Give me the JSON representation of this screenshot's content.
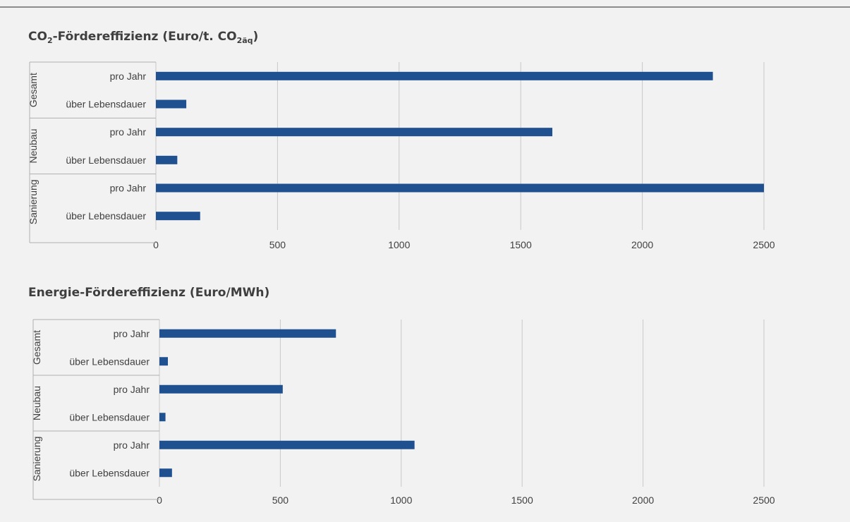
{
  "chart_data": [
    {
      "type": "bar",
      "title_main": "CO",
      "title_sub1": "2",
      "title_mid": "-Fördereffizienz (Euro/t. CO",
      "title_sub2": "2äq",
      "title_end": ")",
      "groups": [
        "Gesamt",
        "Neubau",
        "Sanierung"
      ],
      "categories": [
        "pro Jahr",
        "über Lebensdauer",
        "pro Jahr",
        "über Lebensdauer",
        "pro Jahr",
        "über Lebensdauer"
      ],
      "values": [
        2290,
        125,
        1630,
        88,
        2500,
        182
      ],
      "xlim": [
        0,
        2500
      ],
      "ticks": [
        "0",
        "500",
        "1000",
        "1500",
        "2000",
        "2500"
      ],
      "grid": true,
      "bar_color": "#1f5090"
    },
    {
      "type": "bar",
      "title": "Energie-Fördereffizienz (Euro/MWh)",
      "groups": [
        "Gesamt",
        "Neubau",
        "Sanierung"
      ],
      "categories": [
        "pro Jahr",
        "über Lebensdauer",
        "pro Jahr",
        "über Lebensdauer",
        "pro Jahr",
        "über Lebensdauer"
      ],
      "values": [
        730,
        35,
        510,
        25,
        1055,
        52
      ],
      "xlim": [
        0,
        2500
      ],
      "ticks": [
        "0",
        "500",
        "1000",
        "1500",
        "2000",
        "2500"
      ],
      "grid": true,
      "bar_color": "#1f5090"
    }
  ]
}
